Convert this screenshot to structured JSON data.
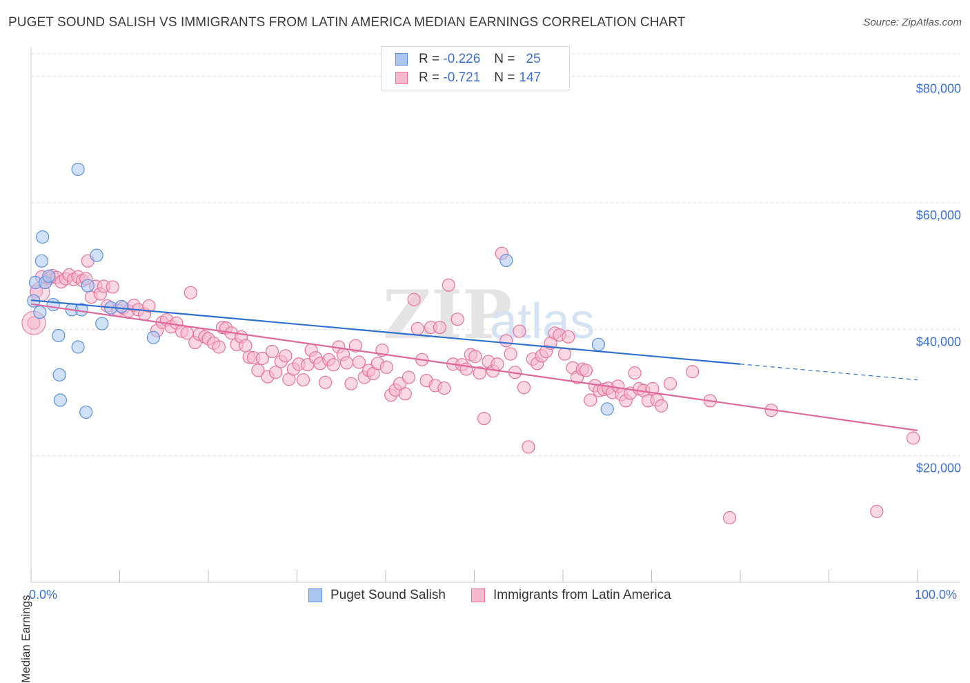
{
  "title": "PUGET SOUND SALISH VS IMMIGRANTS FROM LATIN AMERICA MEDIAN EARNINGS CORRELATION CHART",
  "source": "Source: ZipAtlas.com",
  "watermark": {
    "zip": "ZIP",
    "atlas": "atlas"
  },
  "colors": {
    "blue": "#5b8fe0",
    "blue_fill": "#aac6f0",
    "pink": "#e8709a",
    "pink_fill": "#f5b8cc",
    "blue_line": "#2f6fd0",
    "pink_line": "#e0679a",
    "axis_text": "#3a6fd8"
  },
  "legend_top": {
    "rows": [
      {
        "r_label": "R =",
        "r_value": "-0.226",
        "n_label": "N =",
        "n_value": "25"
      },
      {
        "r_label": "R =",
        "r_value": "-0.721",
        "n_label": "N =",
        "n_value": "147"
      }
    ]
  },
  "legend_bottom": [
    "Puget Sound Salish",
    "Immigrants from Latin America"
  ],
  "chart_data": {
    "type": "scatter",
    "xlabel": "",
    "ylabel": "Median Earnings",
    "xlim": [
      0,
      100
    ],
    "ylim": [
      0,
      84000
    ],
    "x_tick_labels": [
      "0.0%",
      "100.0%"
    ],
    "y_ticks": [
      20000,
      40000,
      60000,
      80000
    ],
    "y_tick_labels": [
      "$20,000",
      "$40,000",
      "$60,000",
      "$80,000"
    ],
    "grid": "dashed horizontal",
    "series": [
      {
        "name": "Puget Sound Salish",
        "points": [
          [
            0.3,
            44500
          ],
          [
            0.5,
            47400
          ],
          [
            1.0,
            42700
          ],
          [
            1.3,
            54600
          ],
          [
            1.2,
            50800
          ],
          [
            1.6,
            47400
          ],
          [
            2.0,
            48400
          ],
          [
            2.5,
            43900
          ],
          [
            3.1,
            39000
          ],
          [
            3.3,
            28800
          ],
          [
            3.2,
            32800
          ],
          [
            4.6,
            43100
          ],
          [
            5.3,
            65300
          ],
          [
            5.3,
            37200
          ],
          [
            5.7,
            43100
          ],
          [
            6.2,
            26900
          ],
          [
            6.4,
            46900
          ],
          [
            7.4,
            51700
          ],
          [
            8.0,
            40900
          ],
          [
            9.0,
            43400
          ],
          [
            10.2,
            43600
          ],
          [
            13.8,
            38700
          ],
          [
            53.6,
            50900
          ],
          [
            64.0,
            37600
          ],
          [
            65.0,
            27400
          ]
        ],
        "trend": {
          "x": [
            0,
            80
          ],
          "y": [
            44600,
            34500
          ]
        },
        "trend_dashed": {
          "x": [
            80,
            100
          ],
          "y": [
            34500,
            32000
          ]
        }
      },
      {
        "name": "Immigrants from Latin America",
        "points": [
          [
            0.3,
            41000
          ],
          [
            0.6,
            46000
          ],
          [
            1.2,
            48300
          ],
          [
            1.6,
            47400
          ],
          [
            2.1,
            48100
          ],
          [
            2.4,
            48500
          ],
          [
            2.9,
            48200
          ],
          [
            3.4,
            47500
          ],
          [
            3.9,
            48000
          ],
          [
            4.3,
            48600
          ],
          [
            4.8,
            47900
          ],
          [
            5.3,
            48300
          ],
          [
            5.8,
            47700
          ],
          [
            6.2,
            48000
          ],
          [
            6.4,
            50800
          ],
          [
            6.8,
            45100
          ],
          [
            7.3,
            46800
          ],
          [
            7.8,
            45600
          ],
          [
            8.2,
            46800
          ],
          [
            8.6,
            43700
          ],
          [
            9.2,
            46700
          ],
          [
            9.8,
            43000
          ],
          [
            10.4,
            43400
          ],
          [
            11.0,
            42900
          ],
          [
            11.6,
            43800
          ],
          [
            12.1,
            43100
          ],
          [
            12.8,
            42400
          ],
          [
            13.3,
            43700
          ],
          [
            14.2,
            39800
          ],
          [
            14.8,
            41100
          ],
          [
            15.3,
            41500
          ],
          [
            15.8,
            40400
          ],
          [
            16.4,
            41000
          ],
          [
            17.0,
            39700
          ],
          [
            17.6,
            39400
          ],
          [
            18.0,
            45800
          ],
          [
            18.5,
            37900
          ],
          [
            19.0,
            39200
          ],
          [
            19.6,
            38800
          ],
          [
            20.0,
            38500
          ],
          [
            20.6,
            37800
          ],
          [
            21.2,
            37200
          ],
          [
            21.6,
            40300
          ],
          [
            22.0,
            40200
          ],
          [
            22.6,
            39400
          ],
          [
            23.2,
            37600
          ],
          [
            23.7,
            38800
          ],
          [
            24.2,
            37400
          ],
          [
            24.6,
            35600
          ],
          [
            25.1,
            35500
          ],
          [
            25.6,
            33500
          ],
          [
            26.1,
            35400
          ],
          [
            26.7,
            32500
          ],
          [
            27.2,
            36500
          ],
          [
            27.6,
            33200
          ],
          [
            28.2,
            34900
          ],
          [
            28.7,
            35800
          ],
          [
            29.1,
            32100
          ],
          [
            29.6,
            33700
          ],
          [
            30.2,
            34500
          ],
          [
            30.7,
            32000
          ],
          [
            31.2,
            34400
          ],
          [
            31.6,
            36700
          ],
          [
            32.1,
            35500
          ],
          [
            32.6,
            34600
          ],
          [
            33.2,
            31600
          ],
          [
            33.6,
            35200
          ],
          [
            34.1,
            34400
          ],
          [
            34.7,
            37200
          ],
          [
            35.2,
            36000
          ],
          [
            35.6,
            34700
          ],
          [
            36.1,
            31400
          ],
          [
            36.6,
            37400
          ],
          [
            37.0,
            34800
          ],
          [
            37.6,
            32400
          ],
          [
            38.1,
            33500
          ],
          [
            38.6,
            33000
          ],
          [
            39.1,
            34600
          ],
          [
            39.6,
            36700
          ],
          [
            40.1,
            34000
          ],
          [
            40.6,
            29600
          ],
          [
            41.1,
            30400
          ],
          [
            41.6,
            31400
          ],
          [
            42.2,
            29800
          ],
          [
            42.6,
            32400
          ],
          [
            43.2,
            44700
          ],
          [
            43.6,
            40100
          ],
          [
            44.1,
            35200
          ],
          [
            44.6,
            31900
          ],
          [
            45.1,
            40300
          ],
          [
            45.6,
            31100
          ],
          [
            46.1,
            40300
          ],
          [
            46.6,
            30700
          ],
          [
            47.1,
            47000
          ],
          [
            47.6,
            34500
          ],
          [
            48.1,
            41600
          ],
          [
            48.6,
            34400
          ],
          [
            49.1,
            33700
          ],
          [
            49.6,
            36000
          ],
          [
            50.1,
            35700
          ],
          [
            50.6,
            33100
          ],
          [
            51.1,
            25900
          ],
          [
            51.6,
            34900
          ],
          [
            52.1,
            33400
          ],
          [
            52.6,
            34500
          ],
          [
            53.1,
            52000
          ],
          [
            53.6,
            38200
          ],
          [
            54.1,
            36100
          ],
          [
            54.6,
            33200
          ],
          [
            55.1,
            39700
          ],
          [
            55.6,
            30800
          ],
          [
            56.1,
            21400
          ],
          [
            56.6,
            35300
          ],
          [
            57.1,
            34600
          ],
          [
            57.6,
            35800
          ],
          [
            58.1,
            36500
          ],
          [
            58.6,
            37800
          ],
          [
            59.1,
            39400
          ],
          [
            59.6,
            39100
          ],
          [
            60.2,
            36100
          ],
          [
            60.6,
            38800
          ],
          [
            61.1,
            33900
          ],
          [
            61.6,
            32400
          ],
          [
            62.2,
            33700
          ],
          [
            62.6,
            33500
          ],
          [
            63.1,
            28800
          ],
          [
            63.6,
            31100
          ],
          [
            64.1,
            30300
          ],
          [
            64.6,
            30500
          ],
          [
            65.1,
            30700
          ],
          [
            65.6,
            30000
          ],
          [
            66.2,
            31000
          ],
          [
            66.6,
            29700
          ],
          [
            67.1,
            28700
          ],
          [
            67.6,
            29900
          ],
          [
            68.1,
            33100
          ],
          [
            68.6,
            30600
          ],
          [
            69.1,
            30300
          ],
          [
            69.6,
            28700
          ],
          [
            70.1,
            30600
          ],
          [
            70.6,
            28800
          ],
          [
            71.1,
            27900
          ],
          [
            72.1,
            31400
          ],
          [
            74.6,
            33300
          ],
          [
            76.6,
            28700
          ],
          [
            78.8,
            10200
          ],
          [
            83.5,
            27200
          ],
          [
            95.4,
            11200
          ],
          [
            99.5,
            22800
          ]
        ],
        "trend": {
          "x": [
            0,
            100
          ],
          "y": [
            44000,
            24000
          ]
        }
      }
    ]
  }
}
